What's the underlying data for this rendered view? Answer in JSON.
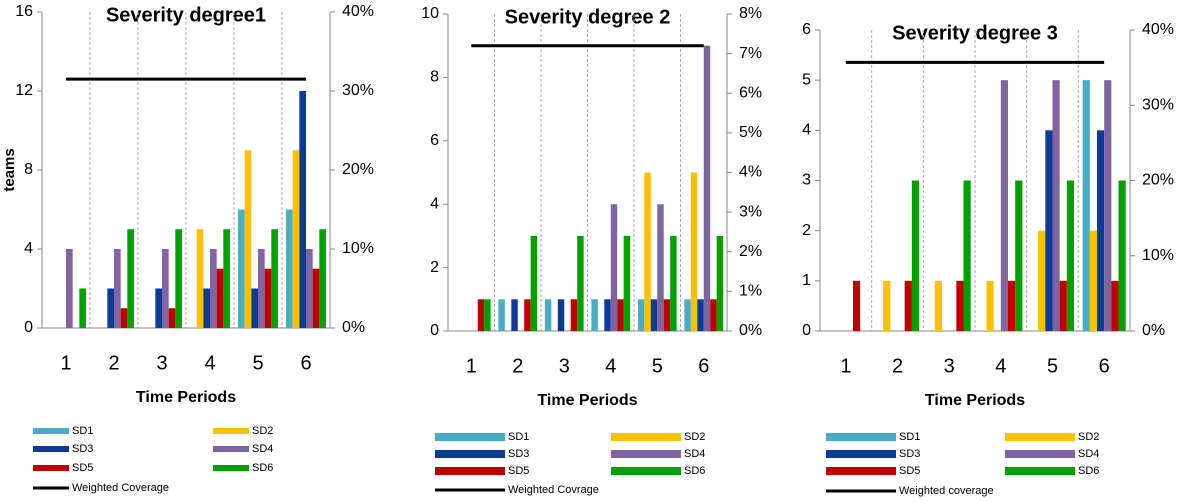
{
  "chart_data": [
    {
      "type": "bar",
      "title": "Severity degree1",
      "y_label": "teams",
      "x_label": "Time Periods",
      "categories": [
        "1",
        "2",
        "3",
        "4",
        "5",
        "6"
      ],
      "series": [
        {
          "name": "SD1",
          "color": "#4bacc6",
          "values": [
            0,
            0,
            0,
            0,
            6,
            6
          ]
        },
        {
          "name": "SD2",
          "color": "#ffc000",
          "values": [
            0,
            0,
            0,
            5,
            9,
            9
          ]
        },
        {
          "name": "SD3",
          "color": "#0e3a9a",
          "values": [
            0,
            2,
            2,
            2,
            2,
            12
          ]
        },
        {
          "name": "SD4",
          "color": "#8064a2",
          "values": [
            4,
            4,
            4,
            4,
            4,
            4
          ]
        },
        {
          "name": "SD5",
          "color": "#c00000",
          "values": [
            0,
            1,
            1,
            3,
            3,
            3
          ]
        },
        {
          "name": "SD6",
          "color": "#00a000",
          "values": [
            2,
            5,
            5,
            5,
            5,
            5
          ]
        },
        {
          "name": "Weighted Coverage",
          "type": "line",
          "axis": "y2",
          "color": "#000000",
          "values": [
            31.5,
            31.5,
            31.5,
            31.5,
            31.5,
            31.5
          ]
        }
      ],
      "ylim": [
        0,
        16
      ],
      "yticks": [
        0,
        4,
        8,
        12,
        16
      ],
      "y2lim": [
        0,
        40
      ],
      "y2ticks": [
        {
          "value": 0,
          "label": "0%"
        },
        {
          "value": 10,
          "label": "10%"
        },
        {
          "value": 20,
          "label": "20%"
        },
        {
          "value": 30,
          "label": "30%"
        },
        {
          "value": 40,
          "label": "40%"
        }
      ],
      "grid": true
    },
    {
      "type": "bar",
      "title": "Severity degree 2",
      "x_label": "Time Periods",
      "categories": [
        "1",
        "2",
        "3",
        "4",
        "5",
        "6"
      ],
      "series": [
        {
          "name": "SD1",
          "color": "#4bacc6",
          "values": [
            0,
            1,
            1,
            1,
            1,
            1
          ]
        },
        {
          "name": "SD2",
          "color": "#ffc000",
          "values": [
            0,
            0,
            0,
            0,
            5,
            5
          ]
        },
        {
          "name": "SD3",
          "color": "#0e3a9a",
          "values": [
            0,
            1,
            1,
            1,
            1,
            1
          ]
        },
        {
          "name": "SD4",
          "color": "#8064a2",
          "values": [
            0,
            0,
            0,
            4,
            4,
            9
          ]
        },
        {
          "name": "SD5",
          "color": "#c00000",
          "values": [
            1,
            1,
            1,
            1,
            1,
            1
          ]
        },
        {
          "name": "SD6",
          "color": "#00a000",
          "values": [
            1,
            3,
            3,
            3,
            3,
            3
          ]
        },
        {
          "name": "Weighted Covrage",
          "type": "line",
          "axis": "y2",
          "color": "#000000",
          "values": [
            7.2,
            7.2,
            7.2,
            7.2,
            7.2,
            7.2
          ]
        }
      ],
      "ylim": [
        0,
        10
      ],
      "yticks": [
        0,
        2,
        4,
        6,
        8,
        10
      ],
      "y2lim": [
        0,
        8
      ],
      "y2ticks": [
        {
          "value": 0,
          "label": "0%"
        },
        {
          "value": 1,
          "label": "1%"
        },
        {
          "value": 2,
          "label": "2%"
        },
        {
          "value": 3,
          "label": "3%"
        },
        {
          "value": 4,
          "label": "4%"
        },
        {
          "value": 5,
          "label": "5%"
        },
        {
          "value": 6,
          "label": "6%"
        },
        {
          "value": 7,
          "label": "7%"
        },
        {
          "value": 8,
          "label": "8%"
        }
      ],
      "grid": true
    },
    {
      "type": "bar",
      "title": "Severity degree 3",
      "x_label": "Time Periods",
      "categories": [
        "1",
        "2",
        "3",
        "4",
        "5",
        "6"
      ],
      "series": [
        {
          "name": "SD1",
          "color": "#4bacc6",
          "values": [
            0,
            0,
            0,
            0,
            0,
            5
          ]
        },
        {
          "name": "SD2",
          "color": "#ffc000",
          "values": [
            0,
            1,
            1,
            1,
            2,
            2
          ]
        },
        {
          "name": "SD3",
          "color": "#0e3a9a",
          "values": [
            0,
            0,
            0,
            0,
            4,
            4
          ]
        },
        {
          "name": "SD4",
          "color": "#8064a2",
          "values": [
            0,
            0,
            0,
            5,
            5,
            5
          ]
        },
        {
          "name": "SD5",
          "color": "#c00000",
          "values": [
            1,
            1,
            1,
            1,
            1,
            1
          ]
        },
        {
          "name": "SD6",
          "color": "#00a000",
          "values": [
            0,
            3,
            3,
            3,
            3,
            3
          ]
        },
        {
          "name": "Weighted coverage",
          "type": "line",
          "axis": "y2",
          "color": "#000000",
          "values": [
            35.7,
            35.7,
            35.7,
            35.7,
            35.7,
            35.7
          ]
        }
      ],
      "ylim": [
        0,
        6
      ],
      "yticks": [
        0,
        1,
        2,
        3,
        4,
        5,
        6
      ],
      "y2lim": [
        0,
        40
      ],
      "y2ticks": [
        {
          "value": 0,
          "label": "0%"
        },
        {
          "value": 10,
          "label": "10%"
        },
        {
          "value": 20,
          "label": "20%"
        },
        {
          "value": 30,
          "label": "30%"
        },
        {
          "value": 40,
          "label": "40%"
        }
      ],
      "grid": true
    }
  ]
}
